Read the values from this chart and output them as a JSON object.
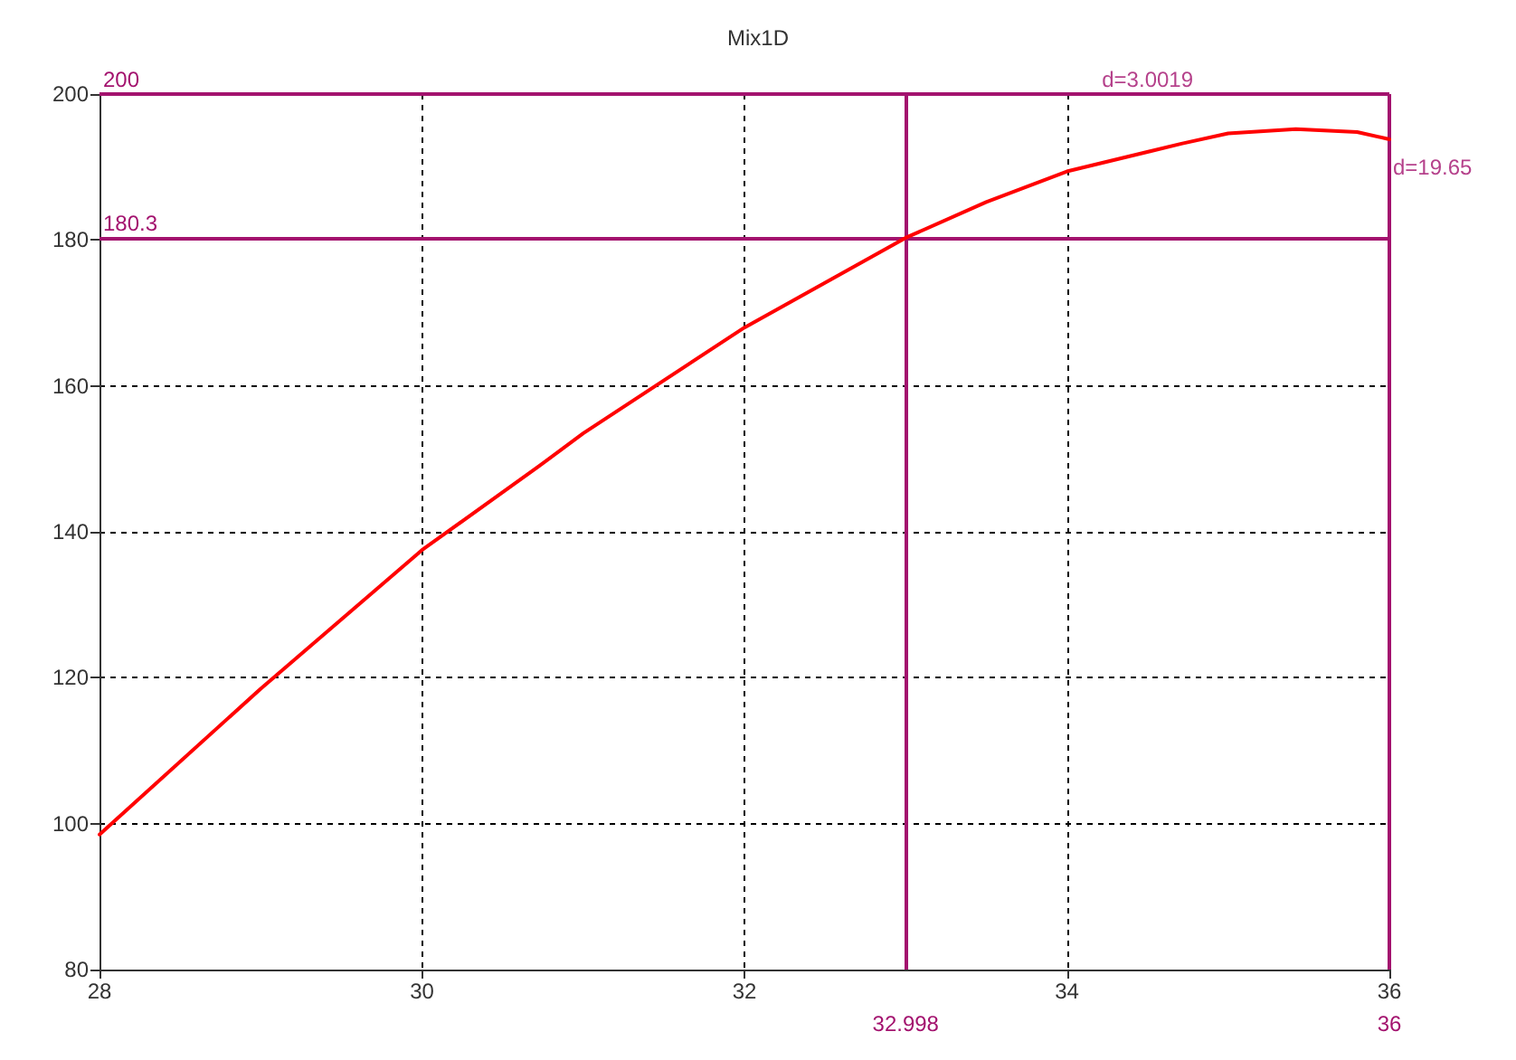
{
  "chart_data": {
    "type": "line",
    "title": "Mix1D",
    "x": [
      28,
      29,
      30,
      30.72,
      31,
      32,
      33,
      33.5,
      34,
      34.71,
      35,
      35.42,
      35.8,
      36
    ],
    "series": [
      {
        "color": "#ff0000",
        "values": [
          98.5,
          118.5,
          137.5,
          148.9,
          153.5,
          168,
          180.3,
          185.2,
          189.4,
          193.2,
          194.6,
          195.2,
          194.8,
          193.8
        ]
      }
    ],
    "xlim": [
      28,
      36
    ],
    "xticks": [
      28,
      30,
      32,
      34,
      36
    ],
    "ylim": [
      80,
      200
    ],
    "yticks": [
      80,
      100,
      120,
      140,
      160,
      180,
      200
    ],
    "grid": true,
    "marker": "none",
    "line_style": "solid",
    "ref_lines": [
      {
        "axis": "x",
        "value": 32.998,
        "label": "32.998",
        "color": "#a3126e"
      },
      {
        "axis": "x",
        "value": 36,
        "label": "36",
        "color": "#a3126e"
      },
      {
        "axis": "y",
        "value": 180.3,
        "label": "180.3",
        "color": "#a3126e"
      },
      {
        "axis": "y",
        "value": 200,
        "label": "200",
        "color": "#a3126e"
      }
    ],
    "annotations": [
      {
        "text": "d=3.0019",
        "x": 34.5,
        "y": 200
      },
      {
        "text": "d=19.65",
        "x": 36,
        "y": 190
      }
    ]
  }
}
